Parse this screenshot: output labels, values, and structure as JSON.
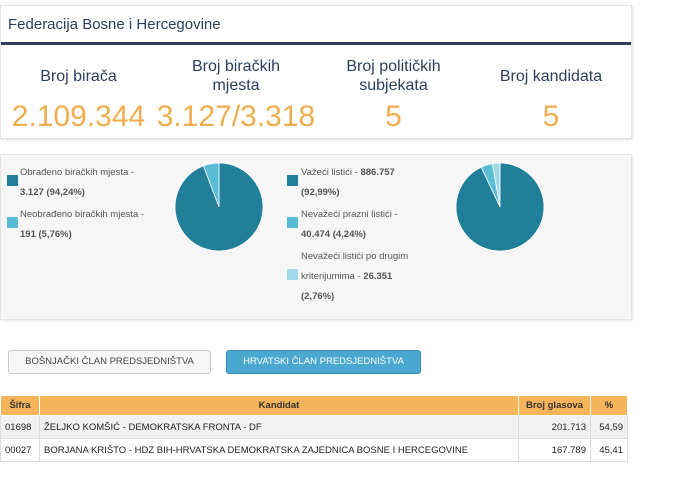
{
  "region": {
    "title": "Federacija Bosne i Hercegovine"
  },
  "stats": [
    {
      "label": "Broj birača",
      "value": "2.109.344"
    },
    {
      "label": "Broj biračkih mjesta",
      "value": "3.127/3.318"
    },
    {
      "label": "Broj političkih subjekata",
      "value": "5"
    },
    {
      "label": "Broj kandidata",
      "value": "5"
    }
  ],
  "colors": {
    "teal": "#217f99",
    "light_blue": "#5bbcd6",
    "pale_blue": "#9fd8e6",
    "orange": "#f5b35a",
    "navy": "#2b3f5c",
    "value_orange": "#f0ad4e"
  },
  "polling_chart": {
    "legend": [
      {
        "label": "Obrađeno biračkih mjesta - ",
        "value": "3.127 (94,24%)",
        "color": "#217f99"
      },
      {
        "label": "Neobrađeno biračkih mjesta - ",
        "value": "191 (5,76%)",
        "color": "#5bbcd6"
      }
    ],
    "slices": [
      94.24,
      5.76
    ]
  },
  "ballots_chart": {
    "legend": [
      {
        "label": "Važeći listići - ",
        "value": "886.757",
        "value2": "(92,99%)",
        "color": "#217f99"
      },
      {
        "label": "Nevažeći prazni listići - ",
        "value": "40.474 (4,24%)",
        "color": "#5bbcd6"
      },
      {
        "label": "Nevažeći listići po drugim",
        "label2": "kriterijumima - ",
        "value": "26.351",
        "value2": "(2,76%)",
        "color": "#9fd8e6"
      }
    ],
    "slices": [
      92.99,
      4.24,
      2.76
    ]
  },
  "tabs": {
    "bosniak": "BOŠNJAČKI ČLAN PREDSJEDNIŠTVA",
    "croat": "HRVATSKI ČLAN PREDSJEDNIŠTVA"
  },
  "table": {
    "headers": [
      "Šifra",
      "Kandidat",
      "Broj glasova",
      "%"
    ],
    "rows": [
      {
        "code": "01698",
        "candidate": "ŽELJKO KOMŠIĆ - DEMOKRATSKA FRONTA - DF",
        "votes": "201.713",
        "pct": "54,59"
      },
      {
        "code": "00027",
        "candidate": "BORJANA KRIŠTO - HDZ BIH-HRVATSKA DEMOKRATSKA ZAJEDNICA BOSNE I HERCEGOVINE",
        "votes": "167.789",
        "pct": "45,41"
      }
    ]
  }
}
